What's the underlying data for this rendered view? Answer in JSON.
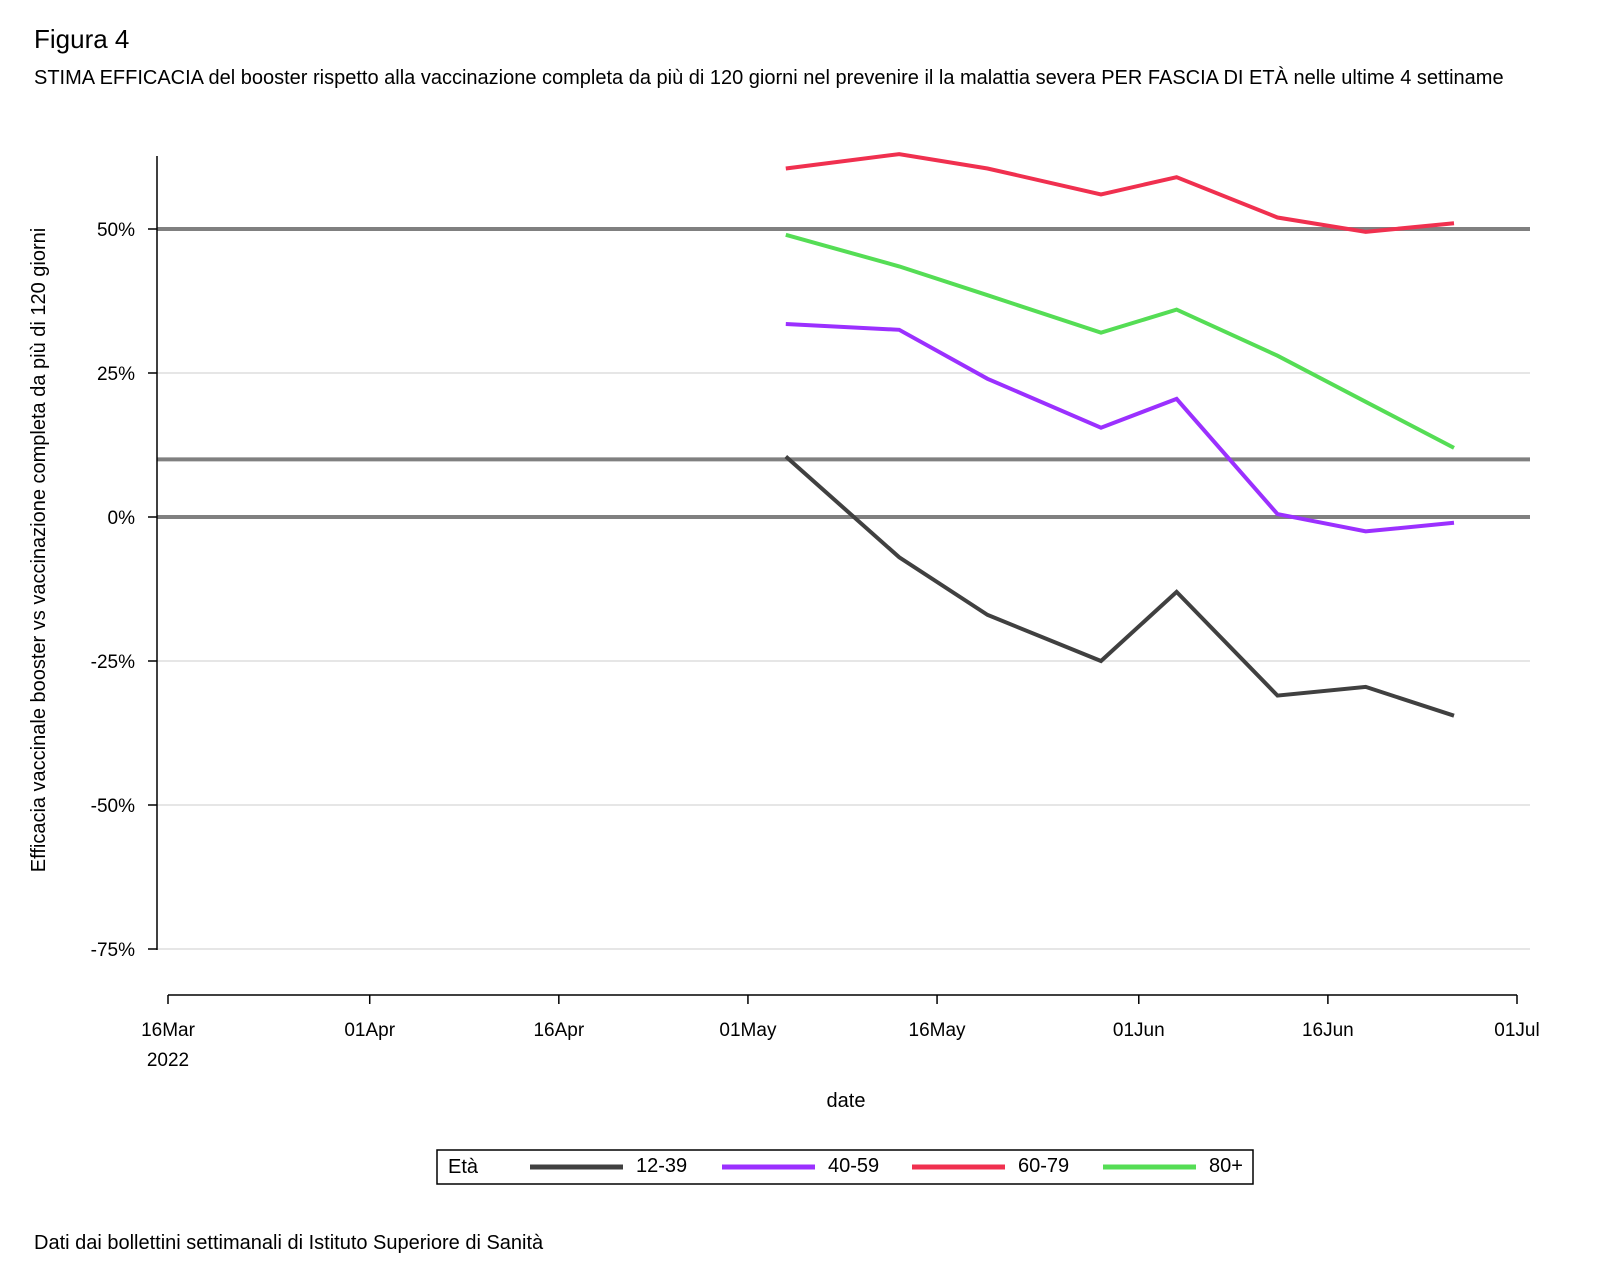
{
  "figure_label": "Figura 4",
  "title": "STIMA EFFICACIA del booster rispetto alla vaccinazione completa da più di 120 giorni nel prevenire il la malattia severa PER FASCIA DI ETÀ  nelle ultime 4 settiname",
  "source_note": "Dati dai bollettini settimanali di Istituto Superiore di Sanità",
  "chart_data": {
    "type": "line",
    "title": "STIMA EFFICACIA del booster rispetto alla vaccinazione completa da più di 120 giorni nel prevenire il la malattia severa PER FASCIA DI ETÀ  nelle ultime 4 settiname",
    "xlabel": "date",
    "ylabel": "Efficacia vaccinale booster vs vaccinazione completa da più di 120 giorni",
    "x_ticks": [
      {
        "date": "2022-03-16",
        "label": "16Mar",
        "sublabel": "2022"
      },
      {
        "date": "2022-04-01",
        "label": "01Apr",
        "sublabel": ""
      },
      {
        "date": "2022-04-16",
        "label": "16Apr",
        "sublabel": ""
      },
      {
        "date": "2022-05-01",
        "label": "01May",
        "sublabel": ""
      },
      {
        "date": "2022-05-16",
        "label": "16May",
        "sublabel": ""
      },
      {
        "date": "2022-06-01",
        "label": "01Jun",
        "sublabel": ""
      },
      {
        "date": "2022-06-16",
        "label": "16Jun",
        "sublabel": ""
      },
      {
        "date": "2022-07-01",
        "label": "01Jul",
        "sublabel": ""
      }
    ],
    "xlim": [
      "2022-03-16",
      "2022-07-01"
    ],
    "y_ticks": [
      {
        "value": 50,
        "label": "50%"
      },
      {
        "value": 25,
        "label": "25%"
      },
      {
        "value": 0,
        "label": "0%"
      },
      {
        "value": -25,
        "label": "-25%"
      },
      {
        "value": -50,
        "label": "-50%"
      },
      {
        "value": -75,
        "label": "-75%"
      }
    ],
    "ylim": [
      -75,
      62
    ],
    "grid": true,
    "reference_lines": [
      50,
      10,
      0
    ],
    "legend": {
      "title": "Età",
      "position": "bottom"
    },
    "x": [
      "2022-05-04",
      "2022-05-13",
      "2022-05-20",
      "2022-05-29",
      "2022-06-04",
      "2022-06-12",
      "2022-06-19",
      "2022-06-26"
    ],
    "series": [
      {
        "name": "12-39",
        "color": "#404040",
        "values": [
          10.5,
          -7,
          -17,
          -25,
          -13,
          -31,
          -29.5,
          -34.5
        ]
      },
      {
        "name": "40-59",
        "color": "#9b30ff",
        "values": [
          33.5,
          32.5,
          24,
          15.5,
          20.5,
          0.5,
          -2.5,
          -1
        ]
      },
      {
        "name": "60-79",
        "color": "#f0304f",
        "values": [
          60.5,
          63,
          60.5,
          56,
          59,
          52,
          49.5,
          51
        ]
      },
      {
        "name": "80+",
        "color": "#55dd55",
        "values": [
          49,
          43.5,
          38.5,
          32,
          36,
          28,
          20,
          12
        ]
      }
    ]
  }
}
